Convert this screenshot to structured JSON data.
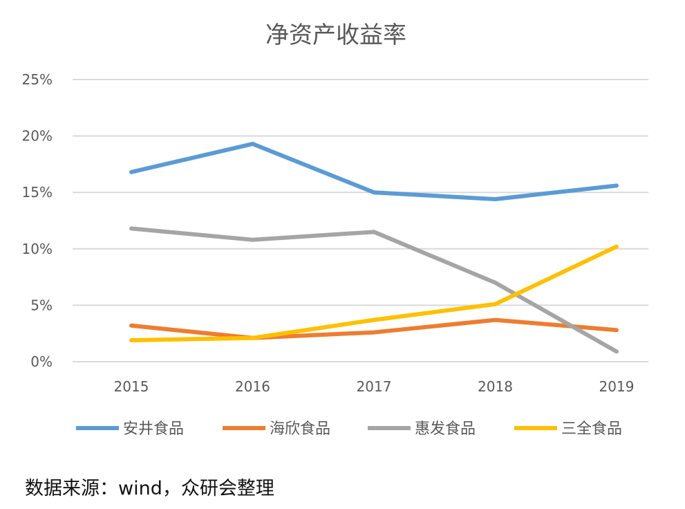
{
  "chart_data": {
    "type": "line",
    "title": "净资产收益率",
    "categories": [
      "2015",
      "2016",
      "2017",
      "2018",
      "2019"
    ],
    "ylim": [
      0,
      25
    ],
    "yticks": [
      "0%",
      "5%",
      "10%",
      "15%",
      "20%",
      "25%"
    ],
    "grid": true,
    "legend_placement": "bottom",
    "series": [
      {
        "name": "安井食品",
        "color": "#5B9BD5",
        "values": [
          16.8,
          19.3,
          15.0,
          14.4,
          15.6
        ]
      },
      {
        "name": "海欣食品",
        "color": "#ED7D31",
        "values": [
          3.2,
          2.1,
          2.6,
          3.7,
          2.8
        ]
      },
      {
        "name": "惠发食品",
        "color": "#A5A5A5",
        "values": [
          11.8,
          10.8,
          11.5,
          7.0,
          0.9
        ]
      },
      {
        "name": "三全食品",
        "color": "#FFC000",
        "values": [
          1.9,
          2.1,
          3.7,
          5.1,
          10.2
        ]
      }
    ]
  },
  "source": "数据来源：wind，众研会整理"
}
